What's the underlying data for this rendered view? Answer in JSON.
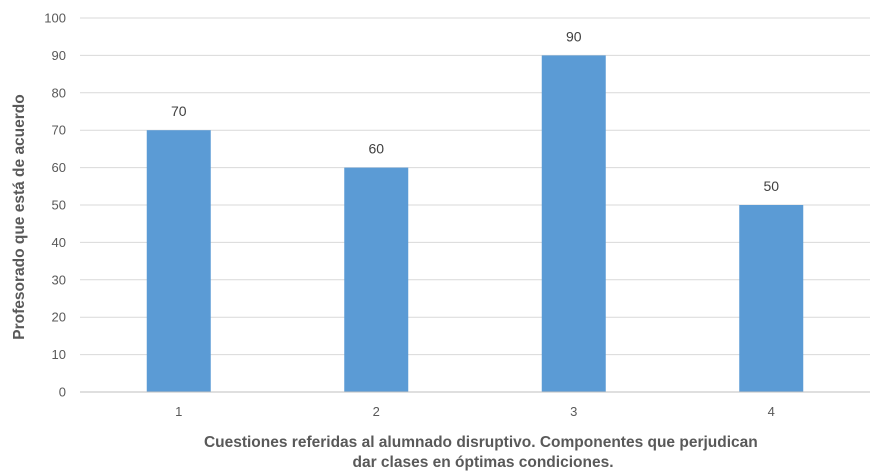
{
  "chart_data": {
    "type": "bar",
    "categories": [
      "1",
      "2",
      "3",
      "4"
    ],
    "values": [
      70,
      60,
      90,
      50
    ],
    "data_labels": [
      "70",
      "60",
      "90",
      "50"
    ],
    "title": "",
    "xlabel": "Cuestiones referidas al alumnado disruptivo. Componentes que perjudican dar clases en óptimas condiciones.",
    "xlabel_lines": [
      "Cuestiones referidas al alumnado disruptivo. Componentes que perjudican",
      "dar clases en óptimas condiciones."
    ],
    "ylabel": "Profesorado que está de acuerdo",
    "ylim": [
      0,
      100
    ],
    "yticks": [
      0,
      10,
      20,
      30,
      40,
      50,
      60,
      70,
      80,
      90,
      100
    ],
    "grid": true,
    "legend": "none",
    "bar_color": "#5b9bd5"
  }
}
